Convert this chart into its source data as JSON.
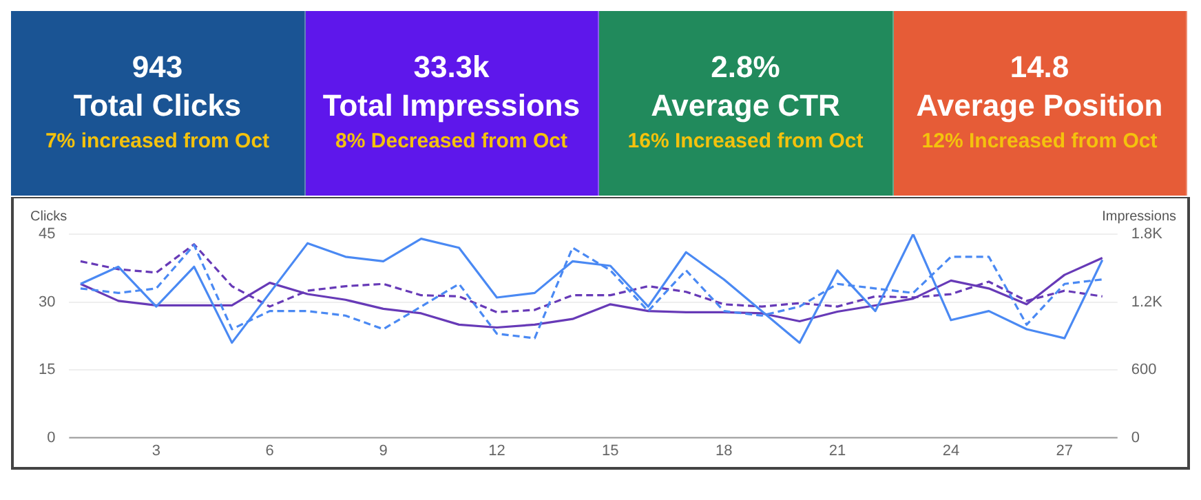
{
  "chart_data": [
    {
      "type": "other",
      "title": "943",
      "subtitle": "Total Clicks",
      "annotations": [
        "7% increased from Oct"
      ],
      "color": "#1a5494"
    },
    {
      "type": "other",
      "title": "33.3k",
      "subtitle": "Total Impressions",
      "annotations": [
        "8% Decreased from Oct"
      ],
      "color": "#5e17eb"
    },
    {
      "type": "other",
      "title": "2.8%",
      "subtitle": "Average CTR",
      "annotations": [
        "16% Increased from Oct"
      ],
      "color": "#218a5c"
    },
    {
      "type": "other",
      "title": "14.8",
      "subtitle": "Average Position",
      "annotations": [
        "12% Increased from Oct"
      ],
      "color": "#e65c37"
    },
    {
      "type": "line",
      "ylabel": "Clicks",
      "y2label": "Impressions",
      "x": [
        1,
        2,
        3,
        4,
        5,
        6,
        7,
        8,
        9,
        10,
        11,
        12,
        13,
        14,
        15,
        16,
        17,
        18,
        19,
        20,
        21,
        22,
        23,
        24,
        25,
        26,
        27,
        28
      ],
      "xlim": [
        0.7,
        28.4
      ],
      "xticks": [
        3,
        6,
        9,
        12,
        15,
        18,
        21,
        24,
        27
      ],
      "ylim": [
        0,
        45
      ],
      "yticks": [
        0,
        15,
        30,
        45
      ],
      "y2lim": [
        0,
        1800
      ],
      "y2ticks": [
        0,
        600,
        {
          "value": 1200,
          "label": "1.2K"
        },
        {
          "value": 1800,
          "label": "1.8K"
        }
      ],
      "grid": "y",
      "legend": false,
      "marker": "none",
      "series": [
        {
          "color": "#4a89f3",
          "line_style": "solid",
          "values": [
            34,
            37.8,
            29,
            37.8,
            21,
            32,
            43,
            40,
            39,
            44,
            42,
            31,
            32,
            39,
            38,
            29,
            41,
            35,
            28,
            21,
            37,
            28,
            45,
            26,
            28,
            24,
            22,
            39.3
          ]
        },
        {
          "color": "#4a89f3",
          "line_style": "dashed",
          "values": [
            33,
            32,
            33,
            42.6,
            24,
            28,
            28,
            27,
            24,
            29,
            34,
            23,
            22,
            42,
            37,
            28,
            37,
            28,
            27,
            29,
            34,
            33,
            32,
            40,
            40,
            25,
            34,
            35
          ]
        },
        {
          "color": "#673ab7",
          "line_style": "solid",
          "axis": "y2",
          "values": [
            1360,
            1210,
            1170,
            1170,
            1170,
            1370,
            1270,
            1220,
            1140,
            1100,
            1000,
            975,
            1000,
            1050,
            1180,
            1120,
            1110,
            1110,
            1100,
            1030,
            1115,
            1170,
            1230,
            1390,
            1320,
            1180,
            1440,
            1590
          ]
        },
        {
          "color": "#673ab7",
          "line_style": "dashed",
          "axis": "y2",
          "values": [
            1560,
            1490,
            1460,
            1710,
            1340,
            1160,
            1300,
            1340,
            1360,
            1260,
            1250,
            1110,
            1130,
            1260,
            1260,
            1340,
            1290,
            1180,
            1160,
            1190,
            1160,
            1250,
            1240,
            1270,
            1380,
            1210,
            1300,
            1250
          ]
        }
      ]
    }
  ]
}
